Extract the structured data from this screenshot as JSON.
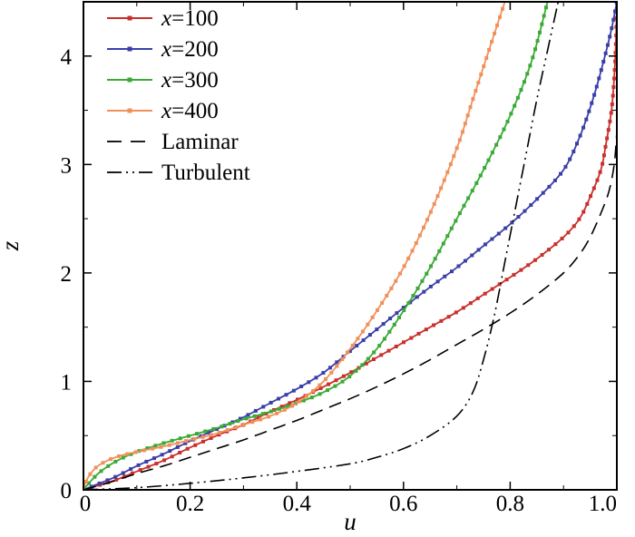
{
  "chart_data": {
    "type": "line",
    "title": "",
    "xlabel": "u",
    "ylabel": "z",
    "xlim": [
      0,
      1
    ],
    "ylim": [
      0,
      4.5
    ],
    "xticks": [
      "0",
      "0.2",
      "0.4",
      "0.6",
      "0.8",
      "1.0"
    ],
    "yticks": [
      "0",
      "1",
      "2",
      "3",
      "4"
    ],
    "grid": false,
    "legend_position": "top-left",
    "series": [
      {
        "name": "x=100",
        "var": "x",
        "eq": "=100",
        "color": "#c8302c",
        "style": "solid-markers",
        "points": [
          [
            0,
            0
          ],
          [
            0.02,
            0.03
          ],
          [
            0.06,
            0.09
          ],
          [
            0.1,
            0.17
          ],
          [
            0.15,
            0.27
          ],
          [
            0.2,
            0.39
          ],
          [
            0.25,
            0.5
          ],
          [
            0.3,
            0.6
          ],
          [
            0.35,
            0.72
          ],
          [
            0.4,
            0.83
          ],
          [
            0.45,
            0.95
          ],
          [
            0.5,
            1.08
          ],
          [
            0.55,
            1.22
          ],
          [
            0.6,
            1.36
          ],
          [
            0.65,
            1.5
          ],
          [
            0.7,
            1.64
          ],
          [
            0.75,
            1.8
          ],
          [
            0.8,
            1.96
          ],
          [
            0.85,
            2.13
          ],
          [
            0.9,
            2.33
          ],
          [
            0.93,
            2.5
          ],
          [
            0.95,
            2.7
          ],
          [
            0.97,
            2.95
          ],
          [
            0.98,
            3.2
          ],
          [
            0.99,
            3.5
          ],
          [
            0.995,
            3.8
          ],
          [
            0.998,
            4.1
          ],
          [
            1.0,
            4.5
          ]
        ]
      },
      {
        "name": "x=200",
        "var": "x",
        "eq": "=200",
        "color": "#3a3fa8",
        "style": "solid-markers",
        "points": [
          [
            0,
            0
          ],
          [
            0.02,
            0.04
          ],
          [
            0.06,
            0.12
          ],
          [
            0.1,
            0.22
          ],
          [
            0.15,
            0.33
          ],
          [
            0.2,
            0.45
          ],
          [
            0.25,
            0.56
          ],
          [
            0.3,
            0.67
          ],
          [
            0.35,
            0.8
          ],
          [
            0.4,
            0.93
          ],
          [
            0.45,
            1.08
          ],
          [
            0.5,
            1.28
          ],
          [
            0.55,
            1.48
          ],
          [
            0.6,
            1.68
          ],
          [
            0.65,
            1.87
          ],
          [
            0.7,
            2.05
          ],
          [
            0.75,
            2.25
          ],
          [
            0.8,
            2.45
          ],
          [
            0.85,
            2.68
          ],
          [
            0.9,
            2.95
          ],
          [
            0.93,
            3.25
          ],
          [
            0.955,
            3.6
          ],
          [
            0.975,
            3.95
          ],
          [
            0.99,
            4.25
          ],
          [
            1.0,
            4.5
          ]
        ]
      },
      {
        "name": "x=300",
        "var": "x",
        "eq": "=300",
        "color": "#3aaa35",
        "style": "solid-markers",
        "points": [
          [
            0,
            0
          ],
          [
            0.01,
            0.06
          ],
          [
            0.03,
            0.16
          ],
          [
            0.06,
            0.26
          ],
          [
            0.1,
            0.35
          ],
          [
            0.15,
            0.43
          ],
          [
            0.2,
            0.5
          ],
          [
            0.25,
            0.57
          ],
          [
            0.3,
            0.65
          ],
          [
            0.35,
            0.72
          ],
          [
            0.4,
            0.8
          ],
          [
            0.45,
            0.9
          ],
          [
            0.5,
            1.05
          ],
          [
            0.55,
            1.3
          ],
          [
            0.6,
            1.65
          ],
          [
            0.65,
            2.05
          ],
          [
            0.7,
            2.5
          ],
          [
            0.75,
            2.95
          ],
          [
            0.8,
            3.45
          ],
          [
            0.84,
            3.95
          ],
          [
            0.87,
            4.5
          ]
        ]
      },
      {
        "name": "x=400",
        "var": "x",
        "eq": "=400",
        "color": "#f0905a",
        "style": "solid-markers",
        "points": [
          [
            0,
            0
          ],
          [
            0.005,
            0.08
          ],
          [
            0.015,
            0.16
          ],
          [
            0.03,
            0.23
          ],
          [
            0.06,
            0.3
          ],
          [
            0.1,
            0.35
          ],
          [
            0.15,
            0.4
          ],
          [
            0.2,
            0.46
          ],
          [
            0.25,
            0.52
          ],
          [
            0.3,
            0.6
          ],
          [
            0.35,
            0.68
          ],
          [
            0.4,
            0.8
          ],
          [
            0.45,
            1
          ],
          [
            0.5,
            1.3
          ],
          [
            0.55,
            1.65
          ],
          [
            0.6,
            2.05
          ],
          [
            0.65,
            2.55
          ],
          [
            0.7,
            3.15
          ],
          [
            0.73,
            3.6
          ],
          [
            0.76,
            4.05
          ],
          [
            0.79,
            4.5
          ]
        ]
      },
      {
        "name": "Laminar",
        "var": "",
        "eq": "Laminar",
        "color": "#000000",
        "style": "dashed",
        "points": [
          [
            0,
            0
          ],
          [
            0.05,
            0.07
          ],
          [
            0.1,
            0.15
          ],
          [
            0.15,
            0.22
          ],
          [
            0.2,
            0.3
          ],
          [
            0.25,
            0.38
          ],
          [
            0.3,
            0.46
          ],
          [
            0.35,
            0.55
          ],
          [
            0.4,
            0.64
          ],
          [
            0.45,
            0.74
          ],
          [
            0.5,
            0.84
          ],
          [
            0.55,
            0.95
          ],
          [
            0.6,
            1.07
          ],
          [
            0.65,
            1.2
          ],
          [
            0.7,
            1.34
          ],
          [
            0.75,
            1.48
          ],
          [
            0.8,
            1.63
          ],
          [
            0.85,
            1.8
          ],
          [
            0.9,
            2
          ],
          [
            0.93,
            2.17
          ],
          [
            0.95,
            2.33
          ],
          [
            0.97,
            2.55
          ],
          [
            0.985,
            2.75
          ],
          [
            0.995,
            3.0
          ],
          [
            1.0,
            3.3
          ]
        ]
      },
      {
        "name": "Turbulent",
        "var": "",
        "eq": "Turbulent",
        "color": "#000000",
        "style": "dashdotdot",
        "points": [
          [
            0,
            0
          ],
          [
            0.1,
            0.02
          ],
          [
            0.2,
            0.06
          ],
          [
            0.3,
            0.11
          ],
          [
            0.4,
            0.17
          ],
          [
            0.5,
            0.24
          ],
          [
            0.55,
            0.3
          ],
          [
            0.6,
            0.38
          ],
          [
            0.65,
            0.5
          ],
          [
            0.7,
            0.68
          ],
          [
            0.73,
            0.9
          ],
          [
            0.75,
            1.2
          ],
          [
            0.77,
            1.6
          ],
          [
            0.79,
            2.1
          ],
          [
            0.81,
            2.6
          ],
          [
            0.83,
            3.1
          ],
          [
            0.85,
            3.6
          ],
          [
            0.87,
            4.05
          ],
          [
            0.89,
            4.5
          ]
        ]
      }
    ]
  }
}
